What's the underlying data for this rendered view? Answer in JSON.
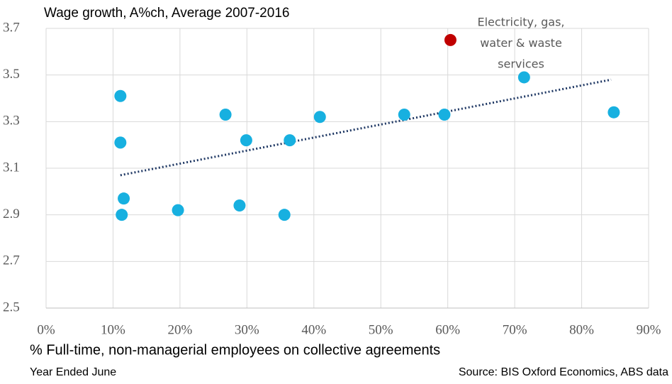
{
  "chart_data": {
    "type": "scatter",
    "title": "Wage growth, A%ch, Average 2007-2016",
    "x_label": "% Full-time, non-managerial employees on collective agreements",
    "footnote_left": "Year Ended June",
    "footnote_right": "Source: BIS Oxford Economics, ABS data",
    "annotation": [
      "Electricity, gas,",
      "water & waste",
      "services"
    ],
    "series": [
      {
        "color": "#17b0e0",
        "x": [
          11.1,
          11.1,
          11.6,
          11.3,
          19.7,
          26.8,
          29.9,
          28.9,
          35.6,
          36.4,
          40.9,
          53.5,
          59.5,
          71.4,
          84.8
        ],
        "values": [
          3.41,
          3.21,
          2.97,
          2.9,
          2.92,
          3.33,
          3.22,
          2.94,
          2.9,
          3.22,
          3.32,
          3.33,
          3.33,
          3.49,
          3.34
        ]
      },
      {
        "color": "#c00000",
        "x": [
          60.4
        ],
        "values": [
          3.65
        ]
      }
    ],
    "trendline": {
      "color": "#1f3864",
      "x": [
        11.1,
        84.4
      ],
      "values": [
        3.07,
        3.48
      ]
    },
    "xlim": [
      0,
      90
    ],
    "xticks": [
      {
        "value": 0,
        "label": "0%"
      },
      {
        "value": 10,
        "label": "10%"
      },
      {
        "value": 20,
        "label": "20%"
      },
      {
        "value": 30,
        "label": "30%"
      },
      {
        "value": 40,
        "label": "40%"
      },
      {
        "value": 50,
        "label": "50%"
      },
      {
        "value": 60,
        "label": "60%"
      },
      {
        "value": 70,
        "label": "70%"
      },
      {
        "value": 80,
        "label": "80%"
      },
      {
        "value": 90,
        "label": "90%"
      }
    ],
    "ylim": [
      2.5,
      3.7
    ],
    "yticks": [
      2.5,
      2.7,
      2.9,
      3.1,
      3.3,
      3.5,
      3.7
    ],
    "grid": true
  }
}
